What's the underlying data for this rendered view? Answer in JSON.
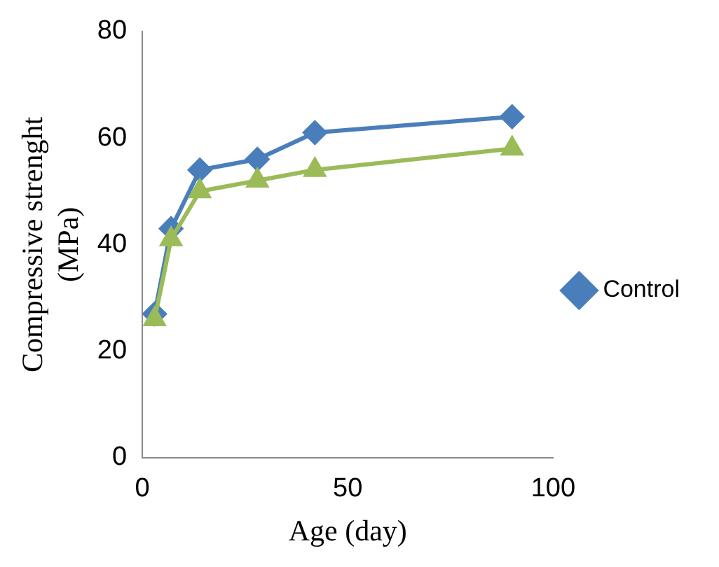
{
  "chart_data": {
    "type": "line",
    "xlabel": "Age (day)",
    "ylabel": "Compressive strenght (MPa)",
    "x": [
      3,
      7,
      14,
      28,
      42,
      90
    ],
    "series": [
      {
        "name": "Control",
        "color": "#4a7ebb",
        "values": [
          27,
          43,
          54,
          56,
          61,
          64
        ],
        "marker": "diamond"
      },
      {
        "color": "#9bbb59",
        "values": [
          26,
          41,
          50,
          52,
          54,
          58
        ],
        "marker": "triangle"
      }
    ],
    "xlim": [
      0,
      100
    ],
    "xticks": [
      0,
      50,
      100
    ],
    "ylim": [
      0,
      80
    ],
    "yticks": [
      0,
      20,
      40,
      60,
      80
    ],
    "grid": false,
    "legend": "right"
  }
}
